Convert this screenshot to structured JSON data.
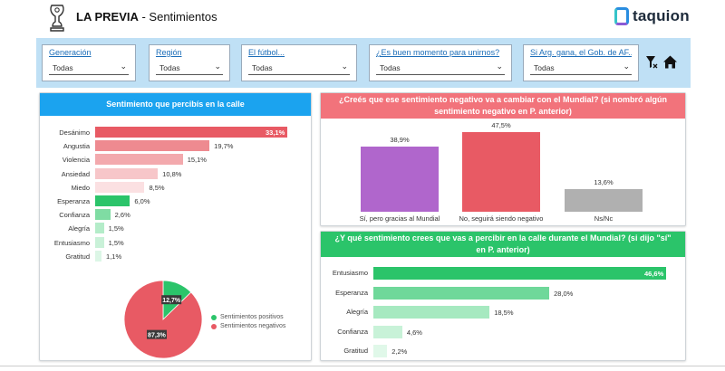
{
  "header": {
    "app_name": "LA PREVIA",
    "separator": " - ",
    "page_name": "Sentimientos",
    "brand": "taquion"
  },
  "filters": [
    {
      "label": "Generación",
      "value": "Todas"
    },
    {
      "label": "Región",
      "value": "Todas"
    },
    {
      "label": "El fútbol...",
      "value": "Todas"
    },
    {
      "label": "¿Es buen momento para unirnos?",
      "value": "Todas"
    },
    {
      "label": "Si Arg. gana, el Gob. de AF...",
      "value": "Todas"
    }
  ],
  "colors": {
    "header_blue": "#1ba3ef",
    "header_red": "#f2737b",
    "header_green": "#2bc46a",
    "filter_band": "#bfe0f5"
  },
  "chart_data": [
    {
      "type": "bar",
      "orientation": "horizontal",
      "title": "Sentimiento que percibís en la calle",
      "categories": [
        "Desánimo",
        "Angustia",
        "Violencia",
        "Ansiedad",
        "Miedo",
        "Esperanza",
        "Confianza",
        "Alegría",
        "Entusiasmo",
        "Gratitud"
      ],
      "values": [
        33.1,
        19.7,
        15.1,
        10.8,
        8.5,
        6.0,
        2.6,
        1.5,
        1.5,
        1.1
      ],
      "labels": [
        "33,1%",
        "19,7%",
        "15,1%",
        "10,8%",
        "8,5%",
        "6,0%",
        "2,6%",
        "1,5%",
        "1,5%",
        "1,1%"
      ],
      "colors": [
        "#e85a64",
        "#ee8a90",
        "#f3a9ad",
        "#f7c6c9",
        "#fbe0e2",
        "#2bc46a",
        "#7fdca3",
        "#b4ecc9",
        "#c9f1d8",
        "#dcf6e6"
      ],
      "xlim": [
        0,
        33.1
      ]
    },
    {
      "type": "pie",
      "categories": [
        "Sentimientos positivos",
        "Sentimientos negativos"
      ],
      "values": [
        12.7,
        87.3
      ],
      "labels": [
        "12,7%",
        "87,3%"
      ],
      "colors": [
        "#2bc46a",
        "#e85a64"
      ]
    },
    {
      "type": "bar",
      "orientation": "vertical",
      "title": "¿Creés que ese sentimiento negativo va a cambiar con el Mundial? (si nombró algún sentimiento negativo en P. anterior)",
      "categories": [
        "Sí, pero gracias al Mundial",
        "No, seguirá siendo negativo",
        "Ns/Nc"
      ],
      "values": [
        38.9,
        47.5,
        13.6
      ],
      "labels": [
        "38,9%",
        "47,5%",
        "13,6%"
      ],
      "colors": [
        "#b066cc",
        "#e85a64",
        "#b0b0b0"
      ],
      "ylim": [
        0,
        47.5
      ]
    },
    {
      "type": "bar",
      "orientation": "horizontal",
      "title": "¿Y qué sentimiento crees que vas a percibir en la calle durante el Mundial? (si dijo \"sí\" en P. anterior)",
      "categories": [
        "Entusiasmo",
        "Esperanza",
        "Alegría",
        "Confianza",
        "Gratitud"
      ],
      "values": [
        46.6,
        28.0,
        18.5,
        4.6,
        2.2
      ],
      "labels": [
        "46,6%",
        "28,0%",
        "18,5%",
        "4,6%",
        "2,2%"
      ],
      "colors": [
        "#2bc46a",
        "#6fd89a",
        "#a6e9c0",
        "#c8f2d8",
        "#e0f8e9"
      ],
      "xlim": [
        0,
        46.6
      ]
    }
  ]
}
